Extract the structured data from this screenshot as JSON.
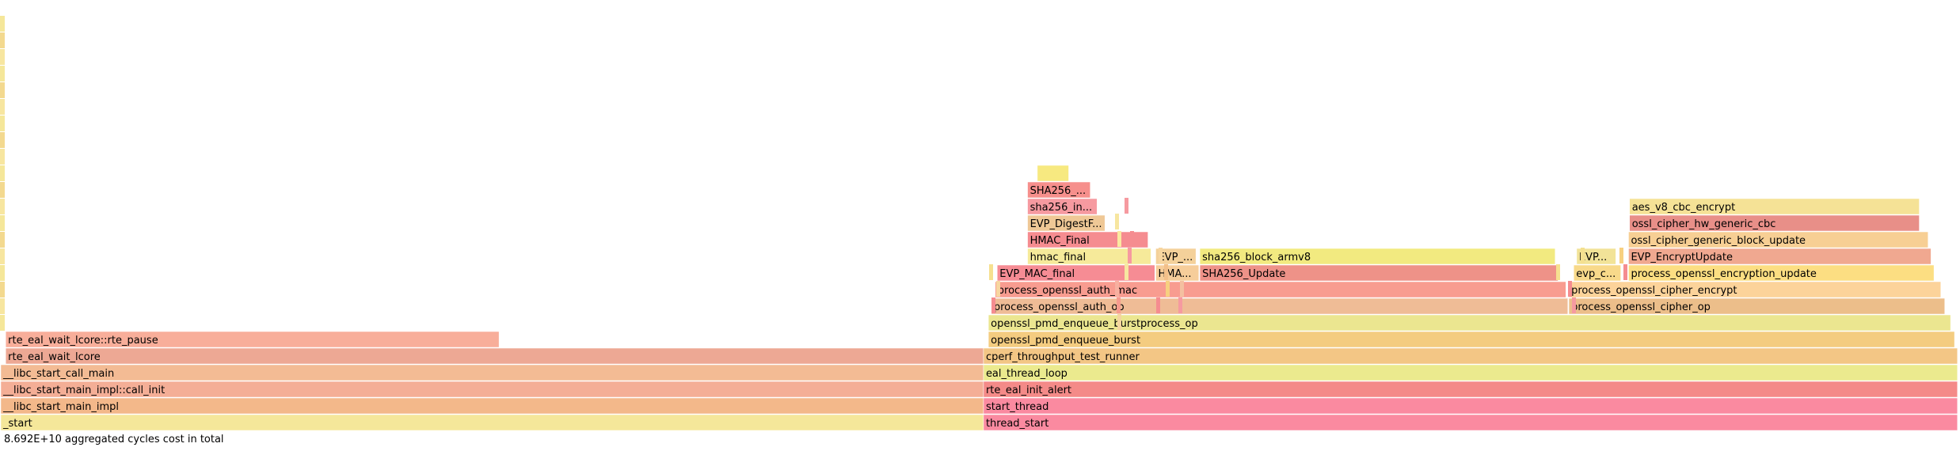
{
  "chart_data": {
    "type": "flamegraph",
    "unit": "aggregated cycles cost",
    "total_label": "8.692E+10 aggregated cycles cost in total",
    "frames": [
      {
        "name": "_start",
        "depth": 0,
        "start": 0.0,
        "width": 0.502,
        "color": "#f5e79a"
      },
      {
        "name": "__libc_start_main_impl",
        "depth": 1,
        "start": 0.0,
        "width": 0.502,
        "color": "#f3b88a"
      },
      {
        "name": "__libc_start_main_impl::call_init",
        "depth": 2,
        "start": 0.0,
        "width": 0.502,
        "color": "#f4ae96"
      },
      {
        "name": "__libc_start_call_main",
        "depth": 3,
        "start": 0.0,
        "width": 0.502,
        "color": "#f3bb94"
      },
      {
        "name": "rte_eal_wait_lcore",
        "depth": 4,
        "start": 0.0025,
        "width": 0.4995,
        "color": "#eda894"
      },
      {
        "name": "rte_eal_wait_lcore::rte_pause",
        "depth": 5,
        "start": 0.0025,
        "width": 0.252,
        "color": "#f8ae9a"
      },
      {
        "name": "thread_start",
        "depth": 0,
        "start": 0.502,
        "width": 0.4975,
        "color": "#fa8aa0"
      },
      {
        "name": "start_thread",
        "depth": 1,
        "start": 0.502,
        "width": 0.4975,
        "color": "#fa8aa0"
      },
      {
        "name": "rte_eal_init_alert",
        "depth": 2,
        "start": 0.502,
        "width": 0.4975,
        "color": "#f48a88"
      },
      {
        "name": "eal_thread_loop",
        "depth": 3,
        "start": 0.502,
        "width": 0.4975,
        "color": "#ebea8e"
      },
      {
        "name": "cperf_throughput_test_runner",
        "depth": 4,
        "start": 0.502,
        "width": 0.4975,
        "color": "#f3c685"
      },
      {
        "name": "openssl_pmd_enqueue_burst",
        "depth": 5,
        "start": 0.5045,
        "width": 0.4935,
        "color": "#f4cc80"
      },
      {
        "name": "openssl_pmd_enqueue_burstprocess_op",
        "depth": 6,
        "start": 0.5045,
        "width": 0.4915,
        "color": "#ebe690"
      },
      {
        "name": "process_openssl_auth_op",
        "depth": 7,
        "start": 0.506,
        "width": 0.2945,
        "color": "#efbc96"
      },
      {
        "name": "process_openssl_cipher_op",
        "depth": 7,
        "start": 0.801,
        "width": 0.192,
        "color": "#ecbe8a"
      },
      {
        "name": "process_openssl_auth_mac",
        "depth": 8,
        "start": 0.508,
        "width": 0.2915,
        "color": "#f89c90"
      },
      {
        "name": "process_openssl_cipher_encrypt",
        "depth": 8,
        "start": 0.801,
        "width": 0.19,
        "color": "#fcd39a"
      },
      {
        "name": "EVP_MAC_final",
        "depth": 9,
        "start": 0.509,
        "width": 0.0805,
        "color": "#f68c94"
      },
      {
        "name": "HMAC_Final",
        "depth": 9,
        "start": 0.59,
        "width": 0.022,
        "color": "#f6cd9a"
      },
      {
        "name": "SHA256_Update",
        "depth": 9,
        "start": 0.6125,
        "width": 0.183,
        "color": "#ee9288"
      },
      {
        "name": "evp_cipher_encrypt",
        "depth": 9,
        "start": 0.8035,
        "width": 0.024,
        "color": "#f8d98a"
      },
      {
        "name": "process_openssl_encryption_update",
        "depth": 9,
        "start": 0.8315,
        "width": 0.156,
        "color": "#fcde82"
      },
      {
        "name": "hmac_final",
        "depth": 10,
        "start": 0.5245,
        "width": 0.063,
        "color": "#f6ea9a"
      },
      {
        "name": "EVP_DigestFinal_ex",
        "depth": 10,
        "start": 0.59,
        "width": 0.0205,
        "color": "#f4d19a"
      },
      {
        "name": "sha256_block_armv8",
        "depth": 10,
        "start": 0.6125,
        "width": 0.1815,
        "color": "#f2ea80"
      },
      {
        "name": "EVP_Digest",
        "depth": 10,
        "start": 0.805,
        "width": 0.02,
        "color": "#f2e398"
      },
      {
        "name": "EVP_EncryptUpdate",
        "depth": 10,
        "start": 0.8315,
        "width": 0.1545,
        "color": "#f0a890"
      },
      {
        "name": "HMAC_Final",
        "depth": 11,
        "start": 0.5245,
        "width": 0.0615,
        "color": "#f58c90"
      },
      {
        "name": "ossl_cipher_generic_block_update",
        "depth": 11,
        "start": 0.8315,
        "width": 0.153,
        "color": "#f7cf94"
      },
      {
        "name": "EVP_DigestFinal_ex",
        "depth": 12,
        "start": 0.5245,
        "width": 0.0395,
        "color": "#efc896"
      },
      {
        "name": "ossl_cipher_hw_generic_cbc",
        "depth": 12,
        "start": 0.832,
        "width": 0.148,
        "color": "#e88f88"
      },
      {
        "name": "sha256_internal_final",
        "depth": 13,
        "start": 0.5245,
        "width": 0.0355,
        "color": "#f69aa0"
      },
      {
        "name": "aes_v8_cbc_encrypt",
        "depth": 13,
        "start": 0.832,
        "width": 0.148,
        "color": "#f5e296"
      },
      {
        "name": "SHA256_Final",
        "depth": 14,
        "start": 0.5245,
        "width": 0.032,
        "color": "#f68f8c"
      },
      {
        "name": "",
        "depth": 15,
        "start": 0.5295,
        "width": 0.016,
        "color": "#f7e980"
      }
    ]
  }
}
